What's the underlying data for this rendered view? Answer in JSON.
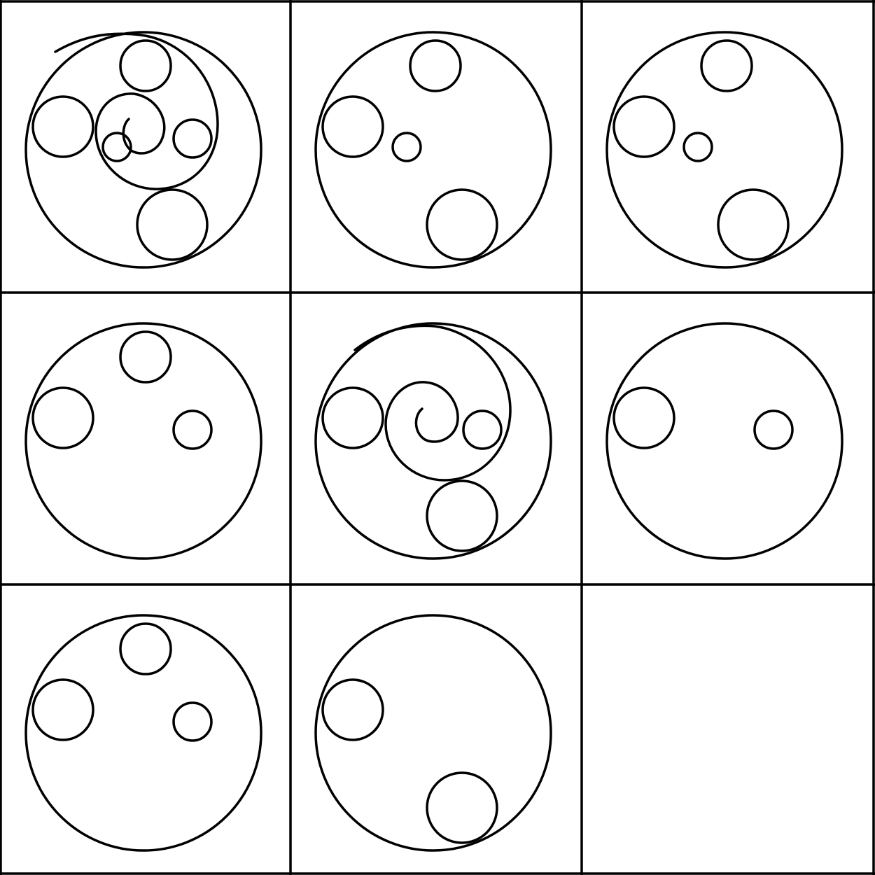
{
  "puzzle": {
    "rows": 3,
    "columns": 3,
    "colors": {
      "stroke": "#000000",
      "background": "#ffffff"
    },
    "cells": [
      {
        "row": 1,
        "col": 1,
        "elements": [
          "large-outer-circle",
          "circle-top",
          "circle-left",
          "circle-right-small",
          "circle-bottom-large",
          "circle-center-tiny",
          "spiral"
        ]
      },
      {
        "row": 1,
        "col": 2,
        "elements": [
          "large-outer-circle",
          "circle-top",
          "circle-left",
          "circle-center-tiny",
          "circle-bottom-large"
        ]
      },
      {
        "row": 1,
        "col": 3,
        "elements": [
          "large-outer-circle",
          "circle-top",
          "circle-left",
          "circle-center-tiny",
          "circle-bottom-large"
        ]
      },
      {
        "row": 2,
        "col": 1,
        "elements": [
          "large-outer-circle",
          "circle-top",
          "circle-left",
          "circle-right-small"
        ]
      },
      {
        "row": 2,
        "col": 2,
        "elements": [
          "large-outer-circle",
          "circle-left",
          "circle-right-small",
          "circle-bottom-large",
          "spiral"
        ]
      },
      {
        "row": 2,
        "col": 3,
        "elements": [
          "large-outer-circle",
          "circle-left",
          "circle-right-small"
        ]
      },
      {
        "row": 3,
        "col": 1,
        "elements": [
          "large-outer-circle",
          "circle-top",
          "circle-left",
          "circle-right-small"
        ]
      },
      {
        "row": 3,
        "col": 2,
        "elements": [
          "large-outer-circle",
          "circle-left",
          "circle-bottom-large"
        ]
      },
      {
        "row": 3,
        "col": 3,
        "elements": []
      }
    ]
  }
}
